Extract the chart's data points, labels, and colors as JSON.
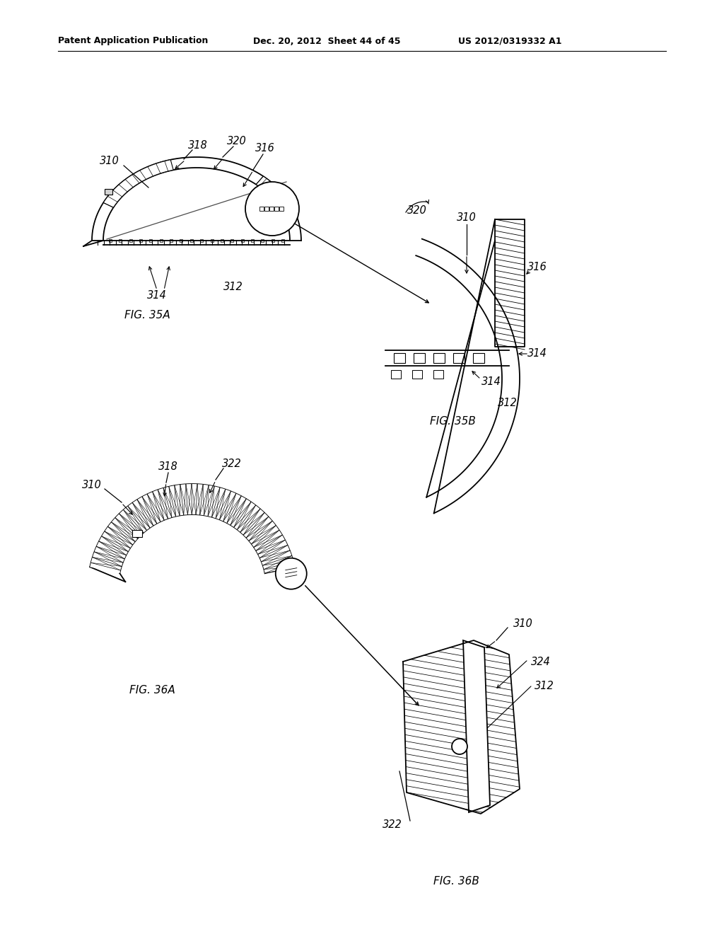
{
  "header_left": "Patent Application Publication",
  "header_mid": "Dec. 20, 2012  Sheet 44 of 45",
  "header_right": "US 2012/0319332 A1",
  "bg_color": "#ffffff",
  "line_color": "#000000",
  "fig35a_label": "FIG. 35A",
  "fig35b_label": "FIG. 35B",
  "fig36a_label": "FIG. 36A",
  "fig36b_label": "FIG. 36B"
}
